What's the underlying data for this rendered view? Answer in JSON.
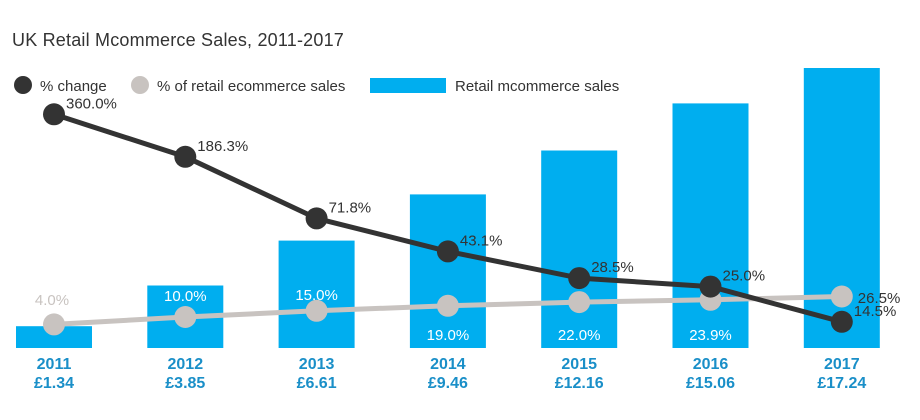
{
  "chart_data": {
    "type": "bar",
    "title": "UK Retail Mcommerce Sales, 2011-2017",
    "categories": [
      "2011",
      "2012",
      "2013",
      "2014",
      "2015",
      "2016",
      "2017"
    ],
    "category_sublabels": [
      "£1.34",
      "£3.85",
      "£6.61",
      "£9.46",
      "£12.16",
      "£15.06",
      "£17.24"
    ],
    "series": [
      {
        "name": "Retail mcommerce sales",
        "kind": "bar",
        "color": "#00aeef",
        "values": [
          1.34,
          3.85,
          6.61,
          9.46,
          12.16,
          15.06,
          17.24
        ]
      },
      {
        "name": "% change",
        "kind": "line",
        "color": "#333333",
        "values": [
          360.0,
          186.3,
          71.8,
          43.1,
          28.5,
          25.0,
          14.5
        ],
        "labels": [
          "360.0%",
          "186.3%",
          "71.8%",
          "43.1%",
          "28.5%",
          "25.0%",
          "14.5%"
        ]
      },
      {
        "name": "% of retail ecommerce sales",
        "kind": "line",
        "color": "#c8c3c0",
        "values": [
          4.0,
          10.0,
          15.0,
          19.0,
          22.0,
          23.9,
          26.5
        ],
        "labels": [
          "4.0%",
          "10.0%",
          "15.0%",
          "19.0%",
          "22.0%",
          "23.9%",
          "26.5%"
        ]
      }
    ],
    "legend_position": "top-left",
    "grid": false
  }
}
